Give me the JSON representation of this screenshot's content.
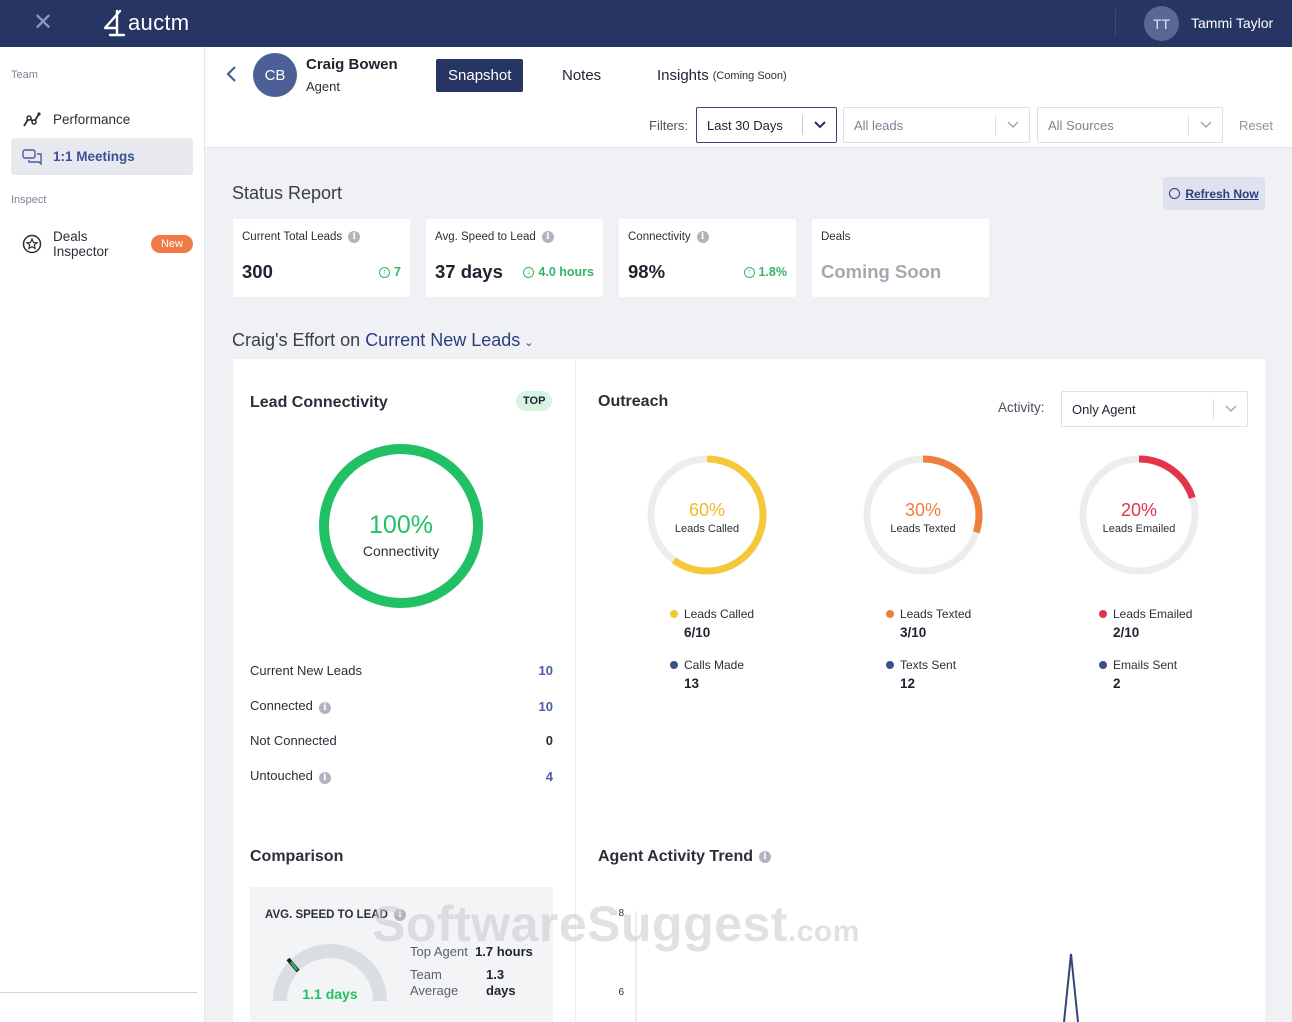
{
  "app": {
    "logo_text": "auctm",
    "user_initials": "TT",
    "user_name": "Tammi Taylor"
  },
  "sidebar": {
    "section_team": "Team",
    "section_inspect": "Inspect",
    "items": [
      {
        "label": "Performance",
        "icon": "trend-icon"
      },
      {
        "label": "1:1 Meetings",
        "icon": "chat-icon"
      },
      {
        "label": "Deals Inspector",
        "icon": "star-badge-icon",
        "badge": "New"
      }
    ]
  },
  "header": {
    "agent_initials": "CB",
    "agent_name": "Craig Bowen",
    "agent_role": "Agent",
    "tabs": [
      {
        "label": "Snapshot"
      },
      {
        "label": "Notes"
      },
      {
        "label": "Insights",
        "suffix": "(Coming Soon)"
      }
    ],
    "filters_label": "Filters:",
    "filter_range": "Last 30 Days",
    "filter_leads": "All leads",
    "filter_sources": "All Sources",
    "reset_label": "Reset"
  },
  "status_report": {
    "title": "Status Report",
    "refresh_label": "Refresh Now",
    "cards": [
      {
        "label": "Current Total Leads",
        "value": "300",
        "delta": "7"
      },
      {
        "label": "Avg. Speed to Lead",
        "value": "37 days",
        "delta": "4.0 hours"
      },
      {
        "label": "Connectivity",
        "value": "98%",
        "delta": "1.8%"
      },
      {
        "label": "Deals",
        "value": "Coming Soon"
      }
    ]
  },
  "effort": {
    "title_prefix": "Craig's Effort on",
    "title_link": "Current New Leads"
  },
  "lead_connectivity": {
    "title": "Lead Connectivity",
    "badge": "TOP",
    "percent_text": "100%",
    "percent_label": "Connectivity",
    "percent_value": 100,
    "color": "#22c064",
    "rows": [
      {
        "label": "Current New Leads",
        "value": "10"
      },
      {
        "label": "Connected",
        "value": "10"
      },
      {
        "label": "Not Connected",
        "value": "0"
      },
      {
        "label": "Untouched",
        "value": "4"
      }
    ]
  },
  "outreach": {
    "title": "Outreach",
    "activity_label": "Activity:",
    "activity_value": "Only Agent",
    "rings": [
      {
        "percent": 60,
        "percent_text": "60%",
        "label": "Leads Called",
        "color": "#f5c83a",
        "legend1": {
          "label": "Leads Called",
          "value": "6/10",
          "color": "#f5c83a"
        },
        "legend2": {
          "label": "Calls Made",
          "value": "13",
          "color": "#3d4f8a"
        }
      },
      {
        "percent": 30,
        "percent_text": "30%",
        "label": "Leads Texted",
        "color": "#ef7d3c",
        "legend1": {
          "label": "Leads Texted",
          "value": "3/10",
          "color": "#ef7d3c"
        },
        "legend2": {
          "label": "Texts Sent",
          "value": "12",
          "color": "#3d4f8a"
        }
      },
      {
        "percent": 20,
        "percent_text": "20%",
        "label": "Leads Emailed",
        "color": "#e2354a",
        "legend1": {
          "label": "Leads Emailed",
          "value": "2/10",
          "color": "#e2354a"
        },
        "legend2": {
          "label": "Emails Sent",
          "value": "2",
          "color": "#3d4f8a"
        }
      }
    ]
  },
  "comparison": {
    "title": "Comparison",
    "metric_label": "AVG. SPEED TO LEAD",
    "gauge_value": "1.1 days",
    "top_agent_label": "Top Agent",
    "top_agent_value": "1.7 hours",
    "team_label_1": "Team",
    "team_label_2": "Average",
    "team_value_1": "1.3",
    "team_value_2": "days"
  },
  "trend": {
    "title": "Agent Activity Trend",
    "y_ticks": [
      "8",
      "6"
    ]
  },
  "watermark": {
    "text": "SoftwareSuggest",
    "suffix": ".com"
  }
}
